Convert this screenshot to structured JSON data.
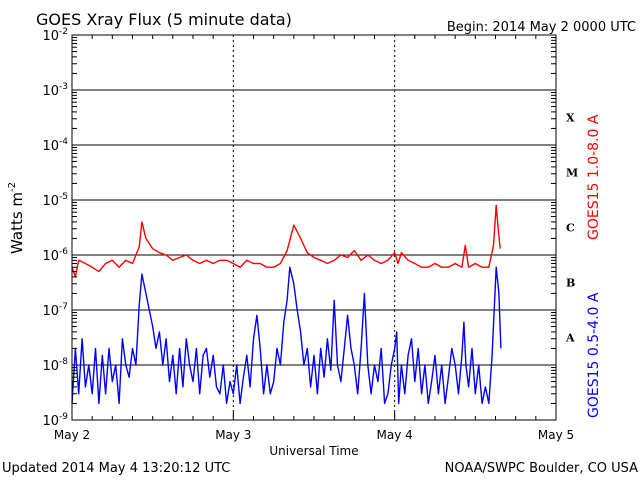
{
  "title": "GOES Xray Flux (5 minute data)",
  "begin_label": "Begin:  2014 May 2 0000 UTC",
  "footer": {
    "updated": "Updated 2014 May  4 13:20:12 UTC",
    "source": "NOAA/SWPC Boulder, CO USA"
  },
  "chart_data": {
    "type": "line",
    "title": "GOES Xray Flux (5 minute data)",
    "xlabel": "Universal Time",
    "ylabel": "Watts m",
    "ylabel_superscript": "-2",
    "y_scale": "log",
    "ylim": [
      1e-09,
      0.01
    ],
    "y_ticks": [
      {
        "base": "10",
        "exp": "-2",
        "value": 0.01
      },
      {
        "base": "10",
        "exp": "-3",
        "value": 0.001
      },
      {
        "base": "10",
        "exp": "-4",
        "value": 0.0001
      },
      {
        "base": "10",
        "exp": "-5",
        "value": 1e-05
      },
      {
        "base": "10",
        "exp": "-6",
        "value": 1e-06
      },
      {
        "base": "10",
        "exp": "-7",
        "value": 1e-07
      },
      {
        "base": "10",
        "exp": "-8",
        "value": 1e-08
      },
      {
        "base": "10",
        "exp": "-9",
        "value": 1e-09
      }
    ],
    "xlim": [
      0,
      72
    ],
    "x_unit": "hours since 2014 May 2 0000 UTC",
    "x_ticks": [
      {
        "label": "May 2",
        "value": 0
      },
      {
        "label": "May 3",
        "value": 24
      },
      {
        "label": "May 4",
        "value": 48
      },
      {
        "label": "May 5",
        "value": 72
      }
    ],
    "flare_classes": [
      {
        "label": "X",
        "value": 0.0001
      },
      {
        "label": "M",
        "value": 1e-05
      },
      {
        "label": "C",
        "value": 1e-06
      },
      {
        "label": "B",
        "value": 1e-07
      },
      {
        "label": "A",
        "value": 1e-08
      }
    ],
    "grid": "horizontal lines at each decade; dotted vertical lines at day boundaries",
    "series": [
      {
        "name": "GOES15 1.0-8.0 A",
        "color": "#ff0000",
        "points": [
          [
            0,
            6e-07
          ],
          [
            0.5,
            4e-07
          ],
          [
            1,
            8e-07
          ],
          [
            2,
            7e-07
          ],
          [
            3,
            6e-07
          ],
          [
            4,
            5e-07
          ],
          [
            5,
            7e-07
          ],
          [
            6,
            8e-07
          ],
          [
            7,
            6e-07
          ],
          [
            8,
            8e-07
          ],
          [
            9,
            7e-07
          ],
          [
            10,
            1.4e-06
          ],
          [
            10.4,
            4e-06
          ],
          [
            11,
            2e-06
          ],
          [
            12,
            1.3e-06
          ],
          [
            13,
            1.1e-06
          ],
          [
            14,
            1e-06
          ],
          [
            15,
            8e-07
          ],
          [
            16,
            9e-07
          ],
          [
            17,
            1e-06
          ],
          [
            18,
            8e-07
          ],
          [
            19,
            7e-07
          ],
          [
            20,
            8e-07
          ],
          [
            21,
            7e-07
          ],
          [
            22,
            8e-07
          ],
          [
            23,
            8e-07
          ],
          [
            24,
            7e-07
          ],
          [
            25,
            6e-07
          ],
          [
            26,
            8e-07
          ],
          [
            27,
            7e-07
          ],
          [
            28,
            7e-07
          ],
          [
            29,
            6e-07
          ],
          [
            30,
            6e-07
          ],
          [
            31,
            7e-07
          ],
          [
            32,
            1.2e-06
          ],
          [
            33,
            3.5e-06
          ],
          [
            34,
            2e-06
          ],
          [
            35,
            1.1e-06
          ],
          [
            36,
            9e-07
          ],
          [
            37,
            8e-07
          ],
          [
            38,
            7e-07
          ],
          [
            39,
            8e-07
          ],
          [
            40,
            1e-06
          ],
          [
            41,
            9e-07
          ],
          [
            42,
            1.2e-06
          ],
          [
            43,
            8e-07
          ],
          [
            44,
            1e-06
          ],
          [
            45,
            8e-07
          ],
          [
            46,
            7e-07
          ],
          [
            47,
            8e-07
          ],
          [
            48,
            1.1e-06
          ],
          [
            48.5,
            7e-07
          ],
          [
            49,
            1.1e-06
          ],
          [
            50,
            8e-07
          ],
          [
            51,
            7e-07
          ],
          [
            52,
            6e-07
          ],
          [
            53,
            6e-07
          ],
          [
            54,
            7e-07
          ],
          [
            55,
            6e-07
          ],
          [
            56,
            6e-07
          ],
          [
            57,
            7e-07
          ],
          [
            58,
            6e-07
          ],
          [
            58.5,
            1.5e-06
          ],
          [
            59,
            6e-07
          ],
          [
            60,
            7e-07
          ],
          [
            61,
            6e-07
          ],
          [
            62,
            6e-07
          ],
          [
            62.7,
            1.5e-06
          ],
          [
            63.1,
            8e-06
          ],
          [
            63.4,
            3e-06
          ],
          [
            63.7,
            1.3e-06
          ]
        ]
      },
      {
        "name": "GOES15 0.5-4.0 A",
        "color": "#0000ff",
        "points": [
          [
            0,
            2e-09
          ],
          [
            0.5,
            2e-08
          ],
          [
            1,
            3e-09
          ],
          [
            1.5,
            3e-08
          ],
          [
            2,
            4e-09
          ],
          [
            2.5,
            1e-08
          ],
          [
            3,
            3e-09
          ],
          [
            3.5,
            2e-08
          ],
          [
            4,
            2e-09
          ],
          [
            4.5,
            1.5e-08
          ],
          [
            5,
            3e-09
          ],
          [
            5.5,
            2e-08
          ],
          [
            6,
            5e-09
          ],
          [
            6.5,
            1e-08
          ],
          [
            7,
            2e-09
          ],
          [
            7.5,
            3e-08
          ],
          [
            8,
            1e-08
          ],
          [
            8.5,
            6e-09
          ],
          [
            9,
            2e-08
          ],
          [
            9.5,
            1e-08
          ],
          [
            10,
            1.2e-07
          ],
          [
            10.4,
            4.5e-07
          ],
          [
            11,
            2e-07
          ],
          [
            11.5,
            1e-07
          ],
          [
            12,
            5e-08
          ],
          [
            12.5,
            2e-08
          ],
          [
            13,
            4e-08
          ],
          [
            13.5,
            1e-08
          ],
          [
            14,
            3e-08
          ],
          [
            14.5,
            5e-09
          ],
          [
            15,
            1.5e-08
          ],
          [
            15.5,
            3e-09
          ],
          [
            16,
            2e-08
          ],
          [
            16.5,
            4e-09
          ],
          [
            17,
            3e-08
          ],
          [
            17.5,
            1e-08
          ],
          [
            18,
            5e-09
          ],
          [
            18.5,
            2e-08
          ],
          [
            19,
            3e-09
          ],
          [
            19.5,
            1.5e-08
          ],
          [
            20,
            2e-08
          ],
          [
            20.5,
            6e-09
          ],
          [
            21,
            1.5e-08
          ],
          [
            21.5,
            4e-09
          ],
          [
            22,
            3e-09
          ],
          [
            22.5,
            1e-08
          ],
          [
            23,
            2e-09
          ],
          [
            23.5,
            5e-09
          ],
          [
            24,
            3e-09
          ],
          [
            24.5,
            1e-08
          ],
          [
            25,
            2e-09
          ],
          [
            25.5,
            6e-09
          ],
          [
            26,
            1.5e-08
          ],
          [
            26.5,
            4e-09
          ],
          [
            27,
            3e-08
          ],
          [
            27.5,
            8e-08
          ],
          [
            28,
            2e-08
          ],
          [
            28.5,
            3e-09
          ],
          [
            29,
            1e-08
          ],
          [
            29.5,
            3e-09
          ],
          [
            30,
            5e-09
          ],
          [
            30.5,
            2e-08
          ],
          [
            31,
            1e-08
          ],
          [
            31.5,
            6e-08
          ],
          [
            32,
            1.5e-07
          ],
          [
            32.4,
            6e-07
          ],
          [
            33,
            3e-07
          ],
          [
            33.5,
            1e-07
          ],
          [
            34,
            4e-08
          ],
          [
            34.5,
            1e-08
          ],
          [
            35,
            2e-08
          ],
          [
            35.5,
            4e-09
          ],
          [
            36,
            1.5e-08
          ],
          [
            36.5,
            3e-09
          ],
          [
            37,
            2e-08
          ],
          [
            37.5,
            6e-09
          ],
          [
            38,
            3e-08
          ],
          [
            38.5,
            8e-09
          ],
          [
            39,
            1.5e-07
          ],
          [
            39.5,
            1e-08
          ],
          [
            40,
            5e-09
          ],
          [
            40.5,
            2e-08
          ],
          [
            41,
            8e-08
          ],
          [
            41.5,
            2e-08
          ],
          [
            42,
            1e-08
          ],
          [
            42.5,
            3e-09
          ],
          [
            43,
            2e-08
          ],
          [
            43.5,
            2e-07
          ],
          [
            44,
            1e-08
          ],
          [
            44.5,
            3e-09
          ],
          [
            45,
            1e-08
          ],
          [
            45.5,
            5e-09
          ],
          [
            46,
            2e-08
          ],
          [
            46.5,
            2e-09
          ],
          [
            47,
            3e-09
          ],
          [
            47.5,
            1e-08
          ],
          [
            48,
            2e-08
          ],
          [
            48.3,
            4e-08
          ],
          [
            48.6,
            2e-09
          ],
          [
            49,
            1e-08
          ],
          [
            49.5,
            3e-09
          ],
          [
            50,
            1.5e-08
          ],
          [
            50.5,
            3e-08
          ],
          [
            51,
            5e-09
          ],
          [
            51.5,
            2e-08
          ],
          [
            52,
            3e-09
          ],
          [
            52.5,
            1e-08
          ],
          [
            53,
            2e-09
          ],
          [
            53.5,
            5e-09
          ],
          [
            54,
            1.5e-08
          ],
          [
            54.5,
            3e-09
          ],
          [
            55,
            1e-08
          ],
          [
            55.5,
            2e-09
          ],
          [
            56,
            6e-09
          ],
          [
            56.5,
            2e-08
          ],
          [
            57,
            1e-08
          ],
          [
            57.5,
            3e-09
          ],
          [
            58,
            1.5e-08
          ],
          [
            58.3,
            6e-08
          ],
          [
            58.6,
            1e-08
          ],
          [
            59,
            4e-09
          ],
          [
            59.5,
            2e-08
          ],
          [
            60,
            3e-09
          ],
          [
            60.5,
            1e-08
          ],
          [
            61,
            2e-09
          ],
          [
            61.5,
            4e-09
          ],
          [
            62,
            2e-09
          ],
          [
            62.5,
            1.5e-08
          ],
          [
            62.8,
            1e-07
          ],
          [
            63.1,
            6e-07
          ],
          [
            63.5,
            2e-07
          ],
          [
            63.8,
            2e-08
          ]
        ]
      }
    ]
  }
}
